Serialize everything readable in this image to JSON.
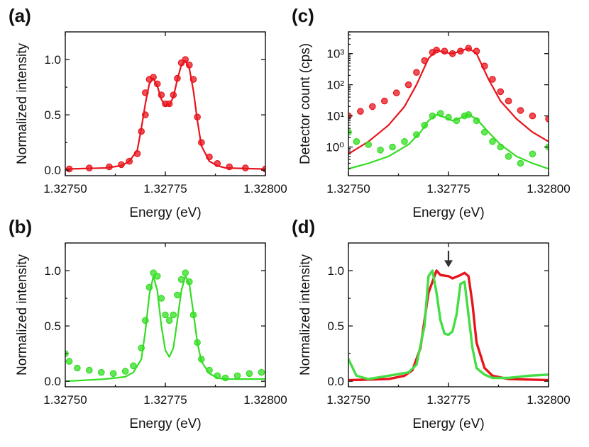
{
  "chart_data": [
    {
      "id": "a",
      "panel_label": "(a)",
      "type": "line",
      "xlabel": "Energy (eV)",
      "ylabel": "Normalized intensity",
      "xlim": [
        1.3275,
        1.328
      ],
      "ylim": [
        -0.05,
        1.25
      ],
      "yscale": "linear",
      "x_ticks": [
        1.3275,
        1.32775,
        1.328
      ],
      "x_tick_labels": [
        "1.32750",
        "1.32775",
        "1.32800"
      ],
      "y_ticks": [
        0,
        0.5,
        1
      ],
      "y_tick_labels": [
        "0.0",
        "0.5",
        "1.0"
      ],
      "series": [
        {
          "name": "data",
          "kind": "markers",
          "color": "#e8141c",
          "x": [
            1.32751,
            1.32756,
            1.32761,
            1.32764,
            1.32766,
            1.32768,
            1.32769,
            1.3277,
            1.3277,
            1.32771,
            1.32772,
            1.32773,
            1.32774,
            1.32775,
            1.32776,
            1.32777,
            1.32778,
            1.32779,
            1.3278,
            1.32781,
            1.32782,
            1.32783,
            1.32784,
            1.32786,
            1.32788,
            1.32791,
            1.32795,
            1.328
          ],
          "y": [
            0.01,
            0.02,
            0.03,
            0.05,
            0.08,
            0.15,
            0.35,
            0.5,
            0.7,
            0.82,
            0.84,
            0.78,
            0.68,
            0.6,
            0.6,
            0.68,
            0.83,
            0.97,
            1.0,
            0.95,
            0.82,
            0.48,
            0.25,
            0.12,
            0.06,
            0.03,
            0.02,
            0.01
          ]
        },
        {
          "name": "fit",
          "kind": "line",
          "color": "#e8141c",
          "x": [
            1.3275,
            1.3276,
            1.32764,
            1.32766,
            1.32768,
            1.32769,
            1.3277,
            1.32771,
            1.32772,
            1.32773,
            1.32774,
            1.32775,
            1.32776,
            1.32777,
            1.32778,
            1.32779,
            1.3278,
            1.32781,
            1.32782,
            1.32783,
            1.32784,
            1.32786,
            1.32788,
            1.3279,
            1.328
          ],
          "y": [
            0.01,
            0.02,
            0.04,
            0.08,
            0.18,
            0.38,
            0.6,
            0.78,
            0.83,
            0.76,
            0.64,
            0.58,
            0.59,
            0.66,
            0.82,
            0.95,
            0.99,
            0.92,
            0.72,
            0.45,
            0.22,
            0.08,
            0.04,
            0.02,
            0.01
          ]
        }
      ]
    },
    {
      "id": "b",
      "panel_label": "(b)",
      "type": "line",
      "xlabel": "Energy (eV)",
      "ylabel": "Normalized intensity",
      "xlim": [
        1.3275,
        1.328
      ],
      "ylim": [
        -0.05,
        1.25
      ],
      "yscale": "linear",
      "x_ticks": [
        1.3275,
        1.32775,
        1.328
      ],
      "x_tick_labels": [
        "1.32750",
        "1.32775",
        "1.32800"
      ],
      "y_ticks": [
        0,
        0.5,
        1
      ],
      "y_tick_labels": [
        "0.0",
        "0.5",
        "1.0"
      ],
      "series": [
        {
          "name": "data",
          "kind": "markers",
          "color": "#33dd22",
          "x": [
            1.3275,
            1.32751,
            1.32753,
            1.32756,
            1.32759,
            1.32762,
            1.32765,
            1.32767,
            1.32769,
            1.3277,
            1.32771,
            1.32772,
            1.32773,
            1.32774,
            1.32775,
            1.32776,
            1.32777,
            1.32778,
            1.32779,
            1.3278,
            1.32781,
            1.32782,
            1.32783,
            1.32784,
            1.32786,
            1.32788,
            1.3279,
            1.32793,
            1.32796,
            1.32799
          ],
          "y": [
            0.25,
            0.18,
            0.12,
            0.1,
            0.08,
            0.07,
            0.09,
            0.14,
            0.3,
            0.55,
            0.85,
            0.98,
            0.95,
            0.75,
            0.6,
            0.55,
            0.6,
            0.78,
            0.92,
            0.98,
            0.9,
            0.6,
            0.35,
            0.2,
            0.1,
            0.05,
            0.03,
            0.05,
            0.07,
            0.08
          ]
        },
        {
          "name": "fit",
          "kind": "line",
          "color": "#33dd22",
          "x": [
            1.3275,
            1.3276,
            1.32765,
            1.32767,
            1.32769,
            1.3277,
            1.32771,
            1.32772,
            1.32773,
            1.32774,
            1.32775,
            1.32776,
            1.32777,
            1.32778,
            1.32779,
            1.3278,
            1.32781,
            1.32782,
            1.32783,
            1.32784,
            1.32786,
            1.32788,
            1.3279,
            1.328
          ],
          "y": [
            0.0,
            0.02,
            0.04,
            0.08,
            0.2,
            0.45,
            0.78,
            0.95,
            0.82,
            0.5,
            0.28,
            0.22,
            0.3,
            0.55,
            0.82,
            0.95,
            0.88,
            0.62,
            0.35,
            0.18,
            0.07,
            0.03,
            0.02,
            0.02
          ]
        }
      ]
    },
    {
      "id": "c",
      "panel_label": "(c)",
      "type": "scatter",
      "xlabel": "Energy (eV)",
      "ylabel": "Detector count (cps)",
      "xlim": [
        1.3275,
        1.328
      ],
      "ylim": [
        0.12,
        5000
      ],
      "yscale": "log",
      "x_ticks": [
        1.3275,
        1.32775,
        1.328
      ],
      "x_tick_labels": [
        "1.32750",
        "1.32775",
        "1.32800"
      ],
      "y_ticks": [
        1,
        10,
        100,
        1000
      ],
      "y_tick_labels": [
        "10⁰",
        "10¹",
        "10²",
        "10³"
      ],
      "series": [
        {
          "name": "data (red)",
          "kind": "markers",
          "color": "#e8141c",
          "x": [
            1.3275,
            1.32753,
            1.32756,
            1.32759,
            1.32762,
            1.32765,
            1.32767,
            1.32769,
            1.32771,
            1.32772,
            1.32774,
            1.32776,
            1.32778,
            1.3278,
            1.32782,
            1.32784,
            1.32786,
            1.32788,
            1.3279,
            1.32793,
            1.32796,
            1.328
          ],
          "y": [
            10,
            14,
            20,
            30,
            55,
            100,
            250,
            600,
            1100,
            1300,
            1200,
            1000,
            1200,
            1500,
            1200,
            400,
            150,
            60,
            30,
            15,
            10,
            8
          ]
        },
        {
          "name": "fit (red)",
          "kind": "line",
          "color": "#e8141c",
          "x": [
            1.3275,
            1.32755,
            1.3276,
            1.32764,
            1.32767,
            1.3277,
            1.32772,
            1.32774,
            1.32776,
            1.32778,
            1.3278,
            1.32782,
            1.32785,
            1.32788,
            1.32792,
            1.32796,
            1.328
          ],
          "y": [
            0.6,
            1.5,
            5,
            20,
            100,
            700,
            1300,
            1100,
            1000,
            1200,
            1500,
            1000,
            150,
            30,
            8,
            3,
            1.5
          ]
        },
        {
          "name": "data (green)",
          "kind": "markers",
          "color": "#33dd22",
          "x": [
            1.3275,
            1.32752,
            1.32755,
            1.32758,
            1.32761,
            1.32764,
            1.32767,
            1.32769,
            1.32771,
            1.32773,
            1.32775,
            1.32777,
            1.32779,
            1.3278,
            1.32782,
            1.32784,
            1.32786,
            1.32788,
            1.3279,
            1.32793,
            1.32796,
            1.328
          ],
          "y": [
            3,
            1.5,
            1.2,
            0.8,
            1.0,
            1.5,
            2.5,
            5,
            10,
            12,
            9,
            7,
            10,
            11,
            7,
            3,
            1.5,
            1.0,
            0.5,
            0.3,
            0.6,
            1.0
          ]
        },
        {
          "name": "fit (green)",
          "kind": "line",
          "color": "#33dd22",
          "x": [
            1.3275,
            1.32755,
            1.3276,
            1.32765,
            1.32768,
            1.3277,
            1.32772,
            1.32774,
            1.32776,
            1.32778,
            1.3278,
            1.32782,
            1.32785,
            1.32788,
            1.32792,
            1.32796,
            1.328
          ],
          "y": [
            0.2,
            0.3,
            0.5,
            1.2,
            3,
            7,
            11,
            9,
            7,
            8.5,
            11,
            8,
            3,
            1.2,
            0.5,
            0.3,
            0.2
          ]
        }
      ]
    },
    {
      "id": "d",
      "panel_label": "(d)",
      "type": "line",
      "xlabel": "Energy (eV)",
      "ylabel": "Normalized intensity",
      "xlim": [
        1.3275,
        1.328
      ],
      "ylim": [
        -0.05,
        1.25
      ],
      "yscale": "linear",
      "x_ticks": [
        1.3275,
        1.32775,
        1.328
      ],
      "x_tick_labels": [
        "1.32750",
        "1.32775",
        "1.32800"
      ],
      "y_ticks": [
        0,
        0.5,
        1
      ],
      "y_tick_labels": [
        "0.0",
        "0.5",
        "1.0"
      ],
      "annotation": {
        "type": "arrow",
        "direction": "down",
        "x": 1.32775,
        "y_from": 1.18,
        "y_to": 1.03
      },
      "series": [
        {
          "name": "red",
          "kind": "line",
          "color": "#e8141c",
          "x": [
            1.3275,
            1.3276,
            1.32764,
            1.32766,
            1.32768,
            1.3277,
            1.32772,
            1.32773,
            1.32775,
            1.32776,
            1.32778,
            1.32779,
            1.3278,
            1.32781,
            1.32782,
            1.32784,
            1.32786,
            1.3279,
            1.328
          ],
          "y": [
            0.01,
            0.02,
            0.05,
            0.1,
            0.3,
            0.8,
            1.0,
            0.96,
            0.95,
            0.93,
            0.96,
            0.98,
            0.95,
            0.7,
            0.35,
            0.12,
            0.05,
            0.02,
            0.01
          ]
        },
        {
          "name": "green",
          "kind": "line",
          "color": "#44dd44",
          "x": [
            1.3275,
            1.32752,
            1.32755,
            1.3276,
            1.32765,
            1.32767,
            1.32769,
            1.3277,
            1.32771,
            1.32772,
            1.32773,
            1.32774,
            1.32775,
            1.32776,
            1.32777,
            1.32778,
            1.32779,
            1.3278,
            1.32781,
            1.32782,
            1.32784,
            1.32786,
            1.3279,
            1.32795,
            1.328
          ],
          "y": [
            0.2,
            0.05,
            0.02,
            0.05,
            0.08,
            0.15,
            0.5,
            0.95,
            1.0,
            0.8,
            0.55,
            0.43,
            0.42,
            0.45,
            0.6,
            0.88,
            0.9,
            0.6,
            0.3,
            0.12,
            0.06,
            0.03,
            0.03,
            0.05,
            0.06
          ]
        }
      ]
    }
  ]
}
